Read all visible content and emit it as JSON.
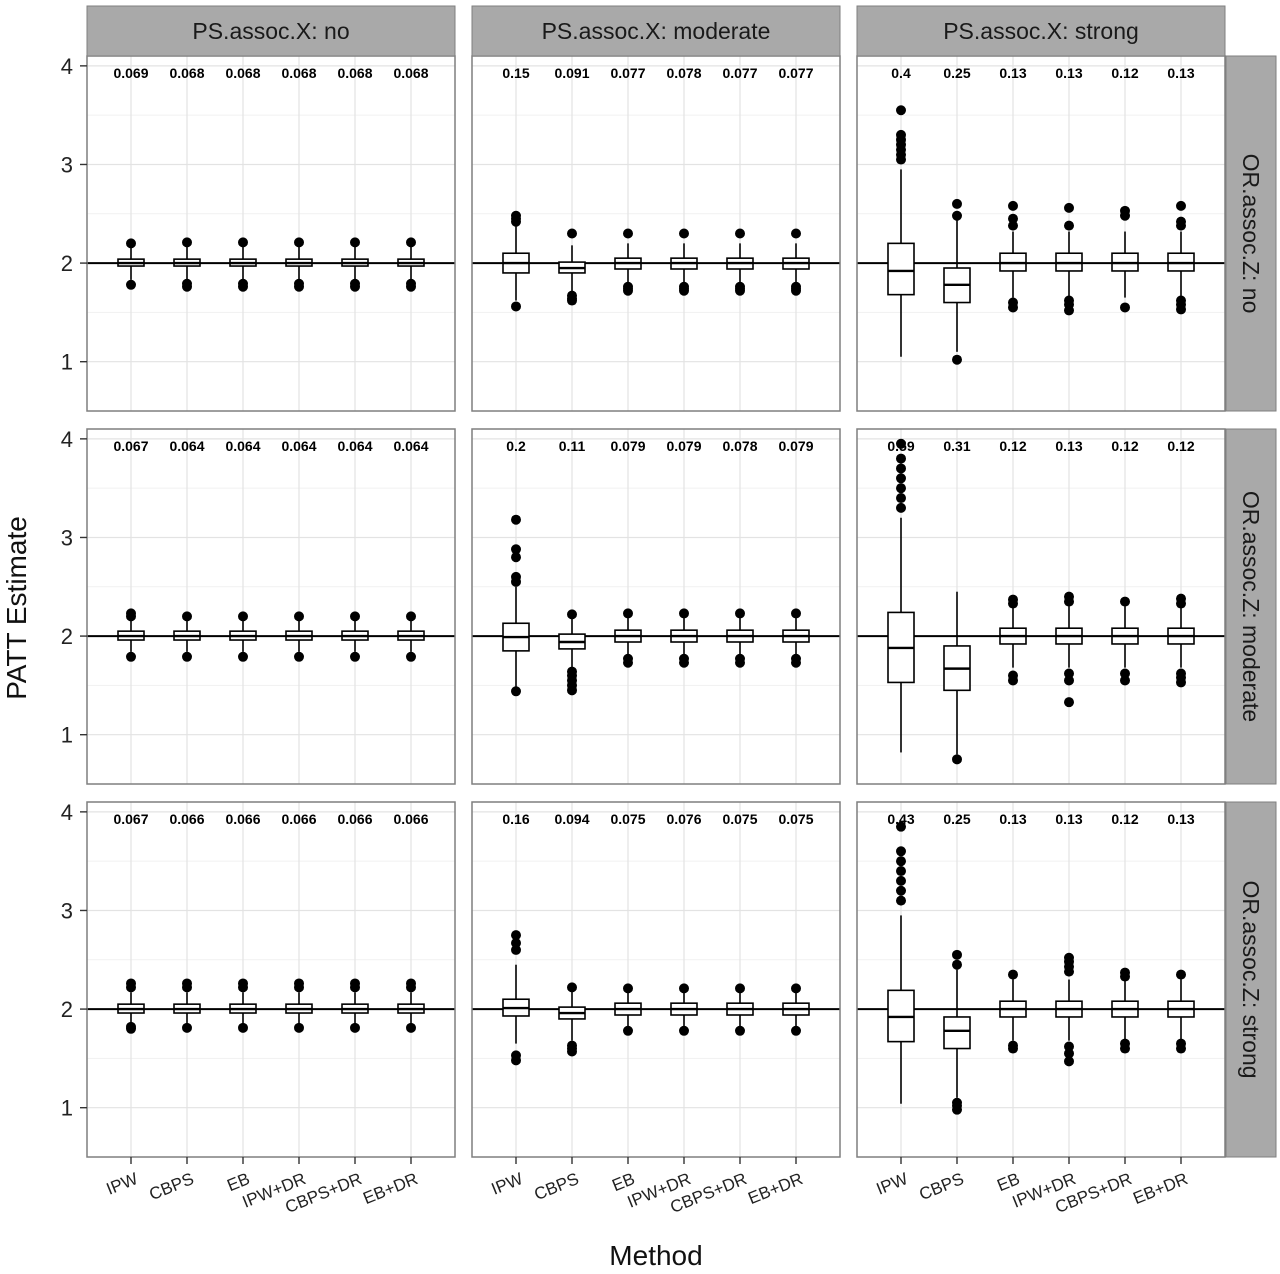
{
  "chart_data": {
    "type": "box",
    "xlabel": "Method",
    "ylabel": "PATT Estimate",
    "ylim": [
      0.5,
      4.1
    ],
    "yticks": [
      1,
      2,
      3,
      4
    ],
    "reference_line": 2,
    "grid": true,
    "methods": [
      "IPW",
      "CBPS",
      "EB",
      "IPW+DR",
      "CBPS+DR",
      "EB+DR"
    ],
    "col_facets": [
      "PS.assoc.X: no",
      "PS.assoc.X: moderate",
      "PS.assoc.X: strong"
    ],
    "row_facets": [
      "OR.assoc.Z: no",
      "OR.assoc.Z: moderate",
      "OR.assoc.Z: strong"
    ],
    "panels": [
      {
        "row": 0,
        "col": 0,
        "rmse": [
          "0.069",
          "0.068",
          "0.068",
          "0.068",
          "0.068",
          "0.068"
        ],
        "boxes": [
          {
            "q1": 1.97,
            "median": 2.0,
            "q3": 2.04,
            "wlo": 1.83,
            "whi": 2.18,
            "out": [
              1.78,
              2.2
            ]
          },
          {
            "q1": 1.97,
            "median": 2.0,
            "q3": 2.04,
            "wlo": 1.83,
            "whi": 2.18,
            "out": [
              1.76,
              1.79,
              2.21
            ]
          },
          {
            "q1": 1.97,
            "median": 2.0,
            "q3": 2.04,
            "wlo": 1.83,
            "whi": 2.18,
            "out": [
              1.76,
              1.79,
              2.21
            ]
          },
          {
            "q1": 1.97,
            "median": 2.0,
            "q3": 2.04,
            "wlo": 1.83,
            "whi": 2.18,
            "out": [
              1.76,
              1.79,
              2.21
            ]
          },
          {
            "q1": 1.97,
            "median": 2.0,
            "q3": 2.04,
            "wlo": 1.83,
            "whi": 2.18,
            "out": [
              1.76,
              1.79,
              2.21
            ]
          },
          {
            "q1": 1.97,
            "median": 2.0,
            "q3": 2.04,
            "wlo": 1.83,
            "whi": 2.18,
            "out": [
              1.76,
              1.79,
              2.21
            ]
          }
        ]
      },
      {
        "row": 0,
        "col": 1,
        "rmse": [
          "0.15",
          "0.091",
          "0.077",
          "0.078",
          "0.077",
          "0.077"
        ],
        "boxes": [
          {
            "q1": 1.9,
            "median": 2.0,
            "q3": 2.1,
            "wlo": 1.62,
            "whi": 2.38,
            "out": [
              1.56,
              2.42,
              2.45,
              2.48
            ]
          },
          {
            "q1": 1.9,
            "median": 1.95,
            "q3": 2.01,
            "wlo": 1.7,
            "whi": 2.18,
            "out": [
              1.62,
              1.64,
              1.67,
              2.3
            ]
          },
          {
            "q1": 1.94,
            "median": 2.0,
            "q3": 2.05,
            "wlo": 1.78,
            "whi": 2.2,
            "out": [
              1.72,
              1.74,
              1.76,
              2.3
            ]
          },
          {
            "q1": 1.94,
            "median": 2.0,
            "q3": 2.05,
            "wlo": 1.78,
            "whi": 2.2,
            "out": [
              1.72,
              1.74,
              1.76,
              2.3
            ]
          },
          {
            "q1": 1.94,
            "median": 2.0,
            "q3": 2.05,
            "wlo": 1.78,
            "whi": 2.2,
            "out": [
              1.72,
              1.74,
              1.76,
              2.3
            ]
          },
          {
            "q1": 1.94,
            "median": 2.0,
            "q3": 2.05,
            "wlo": 1.78,
            "whi": 2.2,
            "out": [
              1.72,
              1.74,
              1.76,
              2.3
            ]
          }
        ]
      },
      {
        "row": 0,
        "col": 2,
        "rmse": [
          "0.4",
          "0.25",
          "0.13",
          "0.13",
          "0.12",
          "0.13"
        ],
        "boxes": [
          {
            "q1": 1.68,
            "median": 1.92,
            "q3": 2.2,
            "wlo": 1.05,
            "whi": 2.95,
            "out": [
              3.05,
              3.1,
              3.15,
              3.2,
              3.25,
              3.3,
              3.55
            ]
          },
          {
            "q1": 1.6,
            "median": 1.78,
            "q3": 1.95,
            "wlo": 1.1,
            "whi": 2.45,
            "out": [
              1.02,
              2.48,
              2.6
            ]
          },
          {
            "q1": 1.92,
            "median": 2.0,
            "q3": 2.1,
            "wlo": 1.65,
            "whi": 2.32,
            "out": [
              1.55,
              1.6,
              2.38,
              2.45,
              2.58
            ]
          },
          {
            "q1": 1.92,
            "median": 2.0,
            "q3": 2.1,
            "wlo": 1.65,
            "whi": 2.32,
            "out": [
              1.52,
              1.58,
              1.62,
              2.38,
              2.56
            ]
          },
          {
            "q1": 1.92,
            "median": 2.0,
            "q3": 2.1,
            "wlo": 1.65,
            "whi": 2.32,
            "out": [
              1.55,
              2.48,
              2.53
            ]
          },
          {
            "q1": 1.92,
            "median": 2.0,
            "q3": 2.1,
            "wlo": 1.65,
            "whi": 2.32,
            "out": [
              1.53,
              1.58,
              1.62,
              2.38,
              2.42,
              2.58
            ]
          }
        ]
      },
      {
        "row": 1,
        "col": 0,
        "rmse": [
          "0.067",
          "0.064",
          "0.064",
          "0.064",
          "0.064",
          "0.064"
        ],
        "boxes": [
          {
            "q1": 1.96,
            "median": 2.0,
            "q3": 2.05,
            "wlo": 1.84,
            "whi": 2.17,
            "out": [
              1.79,
              2.2,
              2.23
            ]
          },
          {
            "q1": 1.96,
            "median": 2.0,
            "q3": 2.05,
            "wlo": 1.84,
            "whi": 2.17,
            "out": [
              1.79,
              2.2
            ]
          },
          {
            "q1": 1.96,
            "median": 2.0,
            "q3": 2.05,
            "wlo": 1.84,
            "whi": 2.17,
            "out": [
              1.79,
              2.2
            ]
          },
          {
            "q1": 1.96,
            "median": 2.0,
            "q3": 2.05,
            "wlo": 1.84,
            "whi": 2.17,
            "out": [
              1.79,
              2.2
            ]
          },
          {
            "q1": 1.96,
            "median": 2.0,
            "q3": 2.05,
            "wlo": 1.84,
            "whi": 2.17,
            "out": [
              1.79,
              2.2
            ]
          },
          {
            "q1": 1.96,
            "median": 2.0,
            "q3": 2.05,
            "wlo": 1.84,
            "whi": 2.17,
            "out": [
              1.79,
              2.2
            ]
          }
        ]
      },
      {
        "row": 1,
        "col": 1,
        "rmse": [
          "0.2",
          "0.11",
          "0.079",
          "0.079",
          "0.078",
          "0.079"
        ],
        "boxes": [
          {
            "q1": 1.85,
            "median": 1.99,
            "q3": 2.13,
            "wlo": 1.48,
            "whi": 2.5,
            "out": [
              1.44,
              2.55,
              2.6,
              2.8,
              2.88,
              3.18
            ]
          },
          {
            "q1": 1.87,
            "median": 1.94,
            "q3": 2.02,
            "wlo": 1.68,
            "whi": 2.18,
            "out": [
              1.45,
              1.5,
              1.55,
              1.6,
              1.64,
              2.22
            ]
          },
          {
            "q1": 1.94,
            "median": 2.0,
            "q3": 2.06,
            "wlo": 1.78,
            "whi": 2.2,
            "out": [
              1.73,
              1.77,
              2.23
            ]
          },
          {
            "q1": 1.94,
            "median": 2.0,
            "q3": 2.06,
            "wlo": 1.78,
            "whi": 2.2,
            "out": [
              1.73,
              1.77,
              2.23
            ]
          },
          {
            "q1": 1.94,
            "median": 2.0,
            "q3": 2.06,
            "wlo": 1.78,
            "whi": 2.2,
            "out": [
              1.73,
              1.77,
              2.23
            ]
          },
          {
            "q1": 1.94,
            "median": 2.0,
            "q3": 2.06,
            "wlo": 1.78,
            "whi": 2.2,
            "out": [
              1.73,
              1.77,
              2.23
            ]
          }
        ]
      },
      {
        "row": 1,
        "col": 2,
        "rmse": [
          "0.59",
          "0.31",
          "0.12",
          "0.13",
          "0.12",
          "0.12"
        ],
        "boxes": [
          {
            "q1": 1.53,
            "median": 1.88,
            "q3": 2.24,
            "wlo": 0.82,
            "whi": 3.2,
            "out": [
              3.3,
              3.4,
              3.5,
              3.6,
              3.7,
              3.8,
              3.95
            ]
          },
          {
            "q1": 1.45,
            "median": 1.67,
            "q3": 1.9,
            "wlo": 0.8,
            "whi": 2.45,
            "out": [
              0.75
            ]
          },
          {
            "q1": 1.92,
            "median": 2.0,
            "q3": 2.08,
            "wlo": 1.68,
            "whi": 2.3,
            "out": [
              1.55,
              1.6,
              2.33,
              2.37
            ]
          },
          {
            "q1": 1.92,
            "median": 2.0,
            "q3": 2.08,
            "wlo": 1.68,
            "whi": 2.3,
            "out": [
              1.33,
              1.55,
              1.62,
              2.35,
              2.4
            ]
          },
          {
            "q1": 1.92,
            "median": 2.0,
            "q3": 2.08,
            "wlo": 1.68,
            "whi": 2.3,
            "out": [
              1.55,
              1.62,
              2.35
            ]
          },
          {
            "q1": 1.92,
            "median": 2.0,
            "q3": 2.08,
            "wlo": 1.68,
            "whi": 2.3,
            "out": [
              1.53,
              1.58,
              1.62,
              2.33,
              2.38
            ]
          }
        ]
      },
      {
        "row": 2,
        "col": 0,
        "rmse": [
          "0.067",
          "0.066",
          "0.066",
          "0.066",
          "0.066",
          "0.066"
        ],
        "boxes": [
          {
            "q1": 1.96,
            "median": 2.0,
            "q3": 2.05,
            "wlo": 1.84,
            "whi": 2.17,
            "out": [
              1.8,
              1.82,
              2.22,
              2.26
            ]
          },
          {
            "q1": 1.96,
            "median": 2.0,
            "q3": 2.05,
            "wlo": 1.84,
            "whi": 2.17,
            "out": [
              1.81,
              2.22,
              2.26
            ]
          },
          {
            "q1": 1.96,
            "median": 2.0,
            "q3": 2.05,
            "wlo": 1.84,
            "whi": 2.17,
            "out": [
              1.81,
              2.22,
              2.26
            ]
          },
          {
            "q1": 1.96,
            "median": 2.0,
            "q3": 2.05,
            "wlo": 1.84,
            "whi": 2.17,
            "out": [
              1.81,
              2.22,
              2.26
            ]
          },
          {
            "q1": 1.96,
            "median": 2.0,
            "q3": 2.05,
            "wlo": 1.84,
            "whi": 2.17,
            "out": [
              1.81,
              2.22,
              2.26
            ]
          },
          {
            "q1": 1.96,
            "median": 2.0,
            "q3": 2.05,
            "wlo": 1.84,
            "whi": 2.17,
            "out": [
              1.81,
              2.22,
              2.26
            ]
          }
        ]
      },
      {
        "row": 2,
        "col": 1,
        "rmse": [
          "0.16",
          "0.094",
          "0.075",
          "0.076",
          "0.075",
          "0.075"
        ],
        "boxes": [
          {
            "q1": 1.93,
            "median": 2.01,
            "q3": 2.1,
            "wlo": 1.65,
            "whi": 2.45,
            "out": [
              1.48,
              1.53,
              2.6,
              2.67,
              2.75
            ]
          },
          {
            "q1": 1.9,
            "median": 1.96,
            "q3": 2.02,
            "wlo": 1.68,
            "whi": 2.18,
            "out": [
              1.57,
              1.6,
              1.63,
              2.22
            ]
          },
          {
            "q1": 1.94,
            "median": 2.0,
            "q3": 2.06,
            "wlo": 1.82,
            "whi": 2.18,
            "out": [
              1.78,
              2.21
            ]
          },
          {
            "q1": 1.94,
            "median": 2.0,
            "q3": 2.06,
            "wlo": 1.82,
            "whi": 2.18,
            "out": [
              1.78,
              2.21
            ]
          },
          {
            "q1": 1.94,
            "median": 2.0,
            "q3": 2.06,
            "wlo": 1.82,
            "whi": 2.18,
            "out": [
              1.78,
              2.21
            ]
          },
          {
            "q1": 1.94,
            "median": 2.0,
            "q3": 2.06,
            "wlo": 1.82,
            "whi": 2.18,
            "out": [
              1.78,
              2.21
            ]
          }
        ]
      },
      {
        "row": 2,
        "col": 2,
        "rmse": [
          "0.43",
          "0.25",
          "0.13",
          "0.13",
          "0.12",
          "0.13"
        ],
        "boxes": [
          {
            "q1": 1.67,
            "median": 1.92,
            "q3": 2.19,
            "wlo": 1.04,
            "whi": 2.95,
            "out": [
              3.1,
              3.2,
              3.3,
              3.4,
              3.5,
              3.6,
              3.85
            ]
          },
          {
            "q1": 1.6,
            "median": 1.78,
            "q3": 1.92,
            "wlo": 1.1,
            "whi": 2.4,
            "out": [
              0.98,
              1.02,
              1.05,
              2.45,
              2.55
            ]
          },
          {
            "q1": 1.92,
            "median": 2.0,
            "q3": 2.08,
            "wlo": 1.68,
            "whi": 2.3,
            "out": [
              1.6,
              1.63,
              2.35
            ]
          },
          {
            "q1": 1.92,
            "median": 2.0,
            "q3": 2.08,
            "wlo": 1.68,
            "whi": 2.3,
            "out": [
              1.47,
              1.55,
              1.62,
              2.38,
              2.43,
              2.48,
              2.52
            ]
          },
          {
            "q1": 1.92,
            "median": 2.0,
            "q3": 2.08,
            "wlo": 1.68,
            "whi": 2.3,
            "out": [
              1.6,
              1.65,
              2.33,
              2.37
            ]
          },
          {
            "q1": 1.92,
            "median": 2.0,
            "q3": 2.08,
            "wlo": 1.68,
            "whi": 2.3,
            "out": [
              1.6,
              1.65,
              2.35
            ]
          }
        ]
      }
    ]
  },
  "colors": {
    "strip_bg": "#a9a9a9",
    "panel_border": "#7f7f7f",
    "grid_major": "#e3e3e3",
    "grid_minor": "#f1f1f1",
    "box_stroke": "#000000",
    "reference_line": "#000000"
  }
}
